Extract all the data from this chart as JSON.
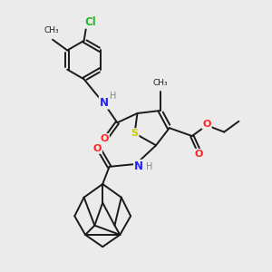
{
  "bg_color": "#ebebeb",
  "bond_color": "#1a1a1a",
  "bond_width": 1.4,
  "fig_w": 3.0,
  "fig_h": 3.0,
  "dpi": 100,
  "atom_colors": {
    "Cl": "#22bb22",
    "N": "#2222ff",
    "O": "#ff2222",
    "S": "#cccc00",
    "H": "#888888"
  }
}
